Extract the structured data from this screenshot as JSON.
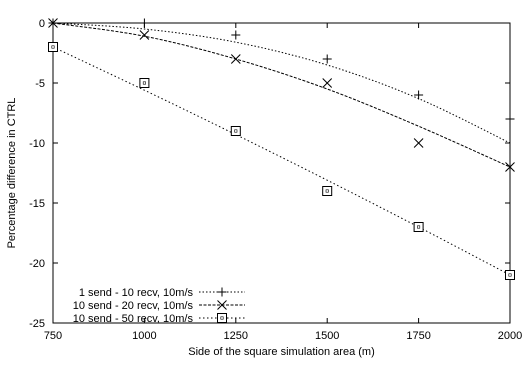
{
  "chart_data": {
    "type": "scatter",
    "xlabel": "Side of the square simulation area (m)",
    "ylabel": "Percentage difference in CTRL",
    "xlim": [
      750,
      2000
    ],
    "ylim": [
      -25,
      0
    ],
    "xticks": [
      "750",
      "1000",
      "1250",
      "1500",
      "1750",
      "2000"
    ],
    "yticks": [
      "0",
      "-5",
      "-10",
      "-15",
      "-20",
      "-25"
    ],
    "xtick_values": [
      750,
      1000,
      1250,
      1500,
      1750,
      2000
    ],
    "ytick_values": [
      0,
      -5,
      -10,
      -15,
      -20,
      -25
    ],
    "grid": false,
    "legend_position": "bottom-left",
    "series": [
      {
        "name": "1 send - 10 recv, 10m/s",
        "marker": "plus",
        "x": [
          750,
          1000,
          1250,
          1500,
          1750,
          2000
        ],
        "y": [
          0,
          0,
          -1,
          -3,
          -6,
          -8
        ],
        "fit": [
          [
            750,
            0
          ],
          [
            1000,
            -0.5
          ],
          [
            1250,
            -1.6
          ],
          [
            1500,
            -3.5
          ],
          [
            1750,
            -6.3
          ],
          [
            2000,
            -10
          ]
        ]
      },
      {
        "name": "10 send - 20 recv, 10m/s",
        "marker": "cross",
        "x": [
          750,
          1000,
          1250,
          1500,
          1750,
          2000
        ],
        "y": [
          0,
          -1,
          -3,
          -5,
          -10,
          -12
        ],
        "fit": [
          [
            750,
            0
          ],
          [
            1000,
            -1.1
          ],
          [
            1250,
            -3.0
          ],
          [
            1500,
            -5.5
          ],
          [
            1750,
            -8.6
          ],
          [
            2000,
            -12
          ]
        ]
      },
      {
        "name": "10 send - 50 recv, 10m/s",
        "marker": "square",
        "x": [
          750,
          1000,
          1250,
          1500,
          1750,
          2000
        ],
        "y": [
          -2,
          -5,
          -9,
          -14,
          -17,
          -21
        ],
        "fit": [
          [
            750,
            -2
          ],
          [
            1000,
            -5.6
          ],
          [
            1250,
            -9.3
          ],
          [
            1500,
            -13.1
          ],
          [
            1750,
            -17.0
          ],
          [
            2000,
            -21
          ]
        ]
      }
    ]
  }
}
